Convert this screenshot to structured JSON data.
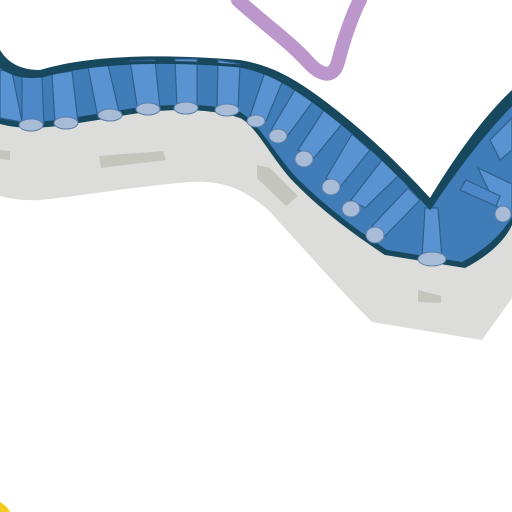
{
  "map": {
    "view": "map-tile",
    "features": [
      {
        "kind": "road",
        "name": "roadway"
      },
      {
        "kind": "river",
        "name": "river-segment"
      },
      {
        "kind": "path",
        "name": "purple-route"
      },
      {
        "kind": "marker",
        "name": "yellow-corner-marker"
      }
    ]
  },
  "colors": {
    "background": "#ffffff",
    "road": "#dcdcda",
    "road_markings": "#c4c6bd",
    "river_outline": "#18485e",
    "river_light": "#5a93d2",
    "river_dark": "#3f7cb8",
    "river_seam": "#2f5f8c",
    "river_node": "#a8bcd8",
    "route": "#bc97cc",
    "marker": "#f2cc1c"
  }
}
